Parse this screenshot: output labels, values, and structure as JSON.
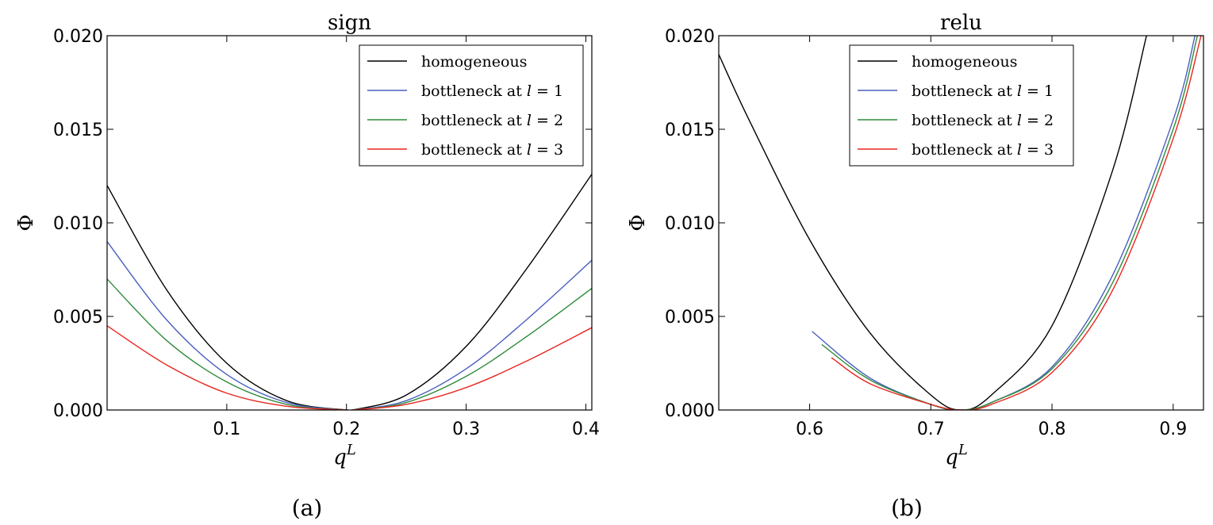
{
  "chart_data": [
    {
      "type": "line",
      "title": "sign",
      "xlabel": "q^L",
      "ylabel": "Φ",
      "caption": "(a)",
      "xlim": [
        0.0,
        0.405
      ],
      "ylim": [
        0.0,
        0.02
      ],
      "xticks": [
        "0.1",
        "0.2",
        "0.3",
        "0.4"
      ],
      "xtick_values": [
        0.1,
        0.2,
        0.3,
        0.4
      ],
      "yticks": [
        "0.000",
        "0.005",
        "0.010",
        "0.015",
        "0.020"
      ],
      "ytick_values": [
        0.0,
        0.005,
        0.01,
        0.015,
        0.02
      ],
      "grid": false,
      "legend_position": "top-right",
      "series": [
        {
          "name": "homogeneous",
          "color": "#000000",
          "x": [
            0.0,
            0.05,
            0.1,
            0.15,
            0.2,
            0.205,
            0.25,
            0.3,
            0.35,
            0.405
          ],
          "y": [
            0.012,
            0.0064,
            0.0025,
            0.0005,
            0.0,
            0.0,
            0.0008,
            0.0034,
            0.0075,
            0.0126
          ]
        },
        {
          "name": "bottleneck at l = 1",
          "color": "#4a5fbf",
          "x": [
            0.0,
            0.05,
            0.1,
            0.15,
            0.2,
            0.205,
            0.25,
            0.3,
            0.35,
            0.405
          ],
          "y": [
            0.009,
            0.0048,
            0.0019,
            0.0004,
            0.0,
            0.0,
            0.0005,
            0.0022,
            0.0048,
            0.008
          ]
        },
        {
          "name": "bottleneck at l = 2",
          "color": "#2e8b3a",
          "x": [
            0.0,
            0.05,
            0.1,
            0.15,
            0.2,
            0.205,
            0.25,
            0.3,
            0.35,
            0.405
          ],
          "y": [
            0.007,
            0.0037,
            0.0015,
            0.0003,
            0.0,
            0.0,
            0.0004,
            0.0018,
            0.0039,
            0.0065
          ]
        },
        {
          "name": "bottleneck at l = 3",
          "color": "#e8261f",
          "x": [
            0.0,
            0.05,
            0.1,
            0.15,
            0.2,
            0.205,
            0.25,
            0.3,
            0.35,
            0.405
          ],
          "y": [
            0.0045,
            0.0024,
            0.0009,
            0.0002,
            0.0,
            0.0,
            0.0003,
            0.0012,
            0.0026,
            0.0044
          ]
        }
      ]
    },
    {
      "type": "line",
      "title": "relu",
      "xlabel": "q^L",
      "ylabel": "Φ",
      "caption": "(b)",
      "xlim": [
        0.525,
        0.925
      ],
      "ylim": [
        0.0,
        0.02
      ],
      "xticks": [
        "0.6",
        "0.7",
        "0.8",
        "0.9"
      ],
      "xtick_values": [
        0.6,
        0.7,
        0.8,
        0.9
      ],
      "yticks": [
        "0.000",
        "0.005",
        "0.010",
        "0.015",
        "0.020"
      ],
      "ytick_values": [
        0.0,
        0.005,
        0.01,
        0.015,
        0.02
      ],
      "grid": false,
      "legend_position": "top-center",
      "series": [
        {
          "name": "homogeneous",
          "color": "#000000",
          "x": [
            0.525,
            0.55,
            0.6,
            0.65,
            0.7,
            0.725,
            0.75,
            0.8,
            0.85,
            0.878
          ],
          "y": [
            0.019,
            0.0155,
            0.0091,
            0.0041,
            0.0008,
            0.0,
            0.0008,
            0.0045,
            0.0128,
            0.02
          ]
        },
        {
          "name": "bottleneck at l = 1",
          "color": "#4a5fbf",
          "x": [
            0.602,
            0.65,
            0.7,
            0.725,
            0.75,
            0.8,
            0.85,
            0.9,
            0.918
          ],
          "y": [
            0.0042,
            0.0017,
            0.0003,
            0.0,
            0.0004,
            0.0023,
            0.0072,
            0.0155,
            0.02
          ]
        },
        {
          "name": "bottleneck at l = 2",
          "color": "#2e8b3a",
          "x": [
            0.61,
            0.65,
            0.7,
            0.725,
            0.75,
            0.8,
            0.85,
            0.9,
            0.92
          ],
          "y": [
            0.0035,
            0.0016,
            0.0003,
            0.0,
            0.0004,
            0.0022,
            0.0068,
            0.015,
            0.02
          ]
        },
        {
          "name": "bottleneck at l = 3",
          "color": "#e8261f",
          "x": [
            0.618,
            0.65,
            0.7,
            0.725,
            0.75,
            0.8,
            0.85,
            0.9,
            0.923
          ],
          "y": [
            0.0028,
            0.0014,
            0.0003,
            0.0,
            0.0003,
            0.002,
            0.0064,
            0.0145,
            0.02
          ]
        }
      ]
    }
  ]
}
